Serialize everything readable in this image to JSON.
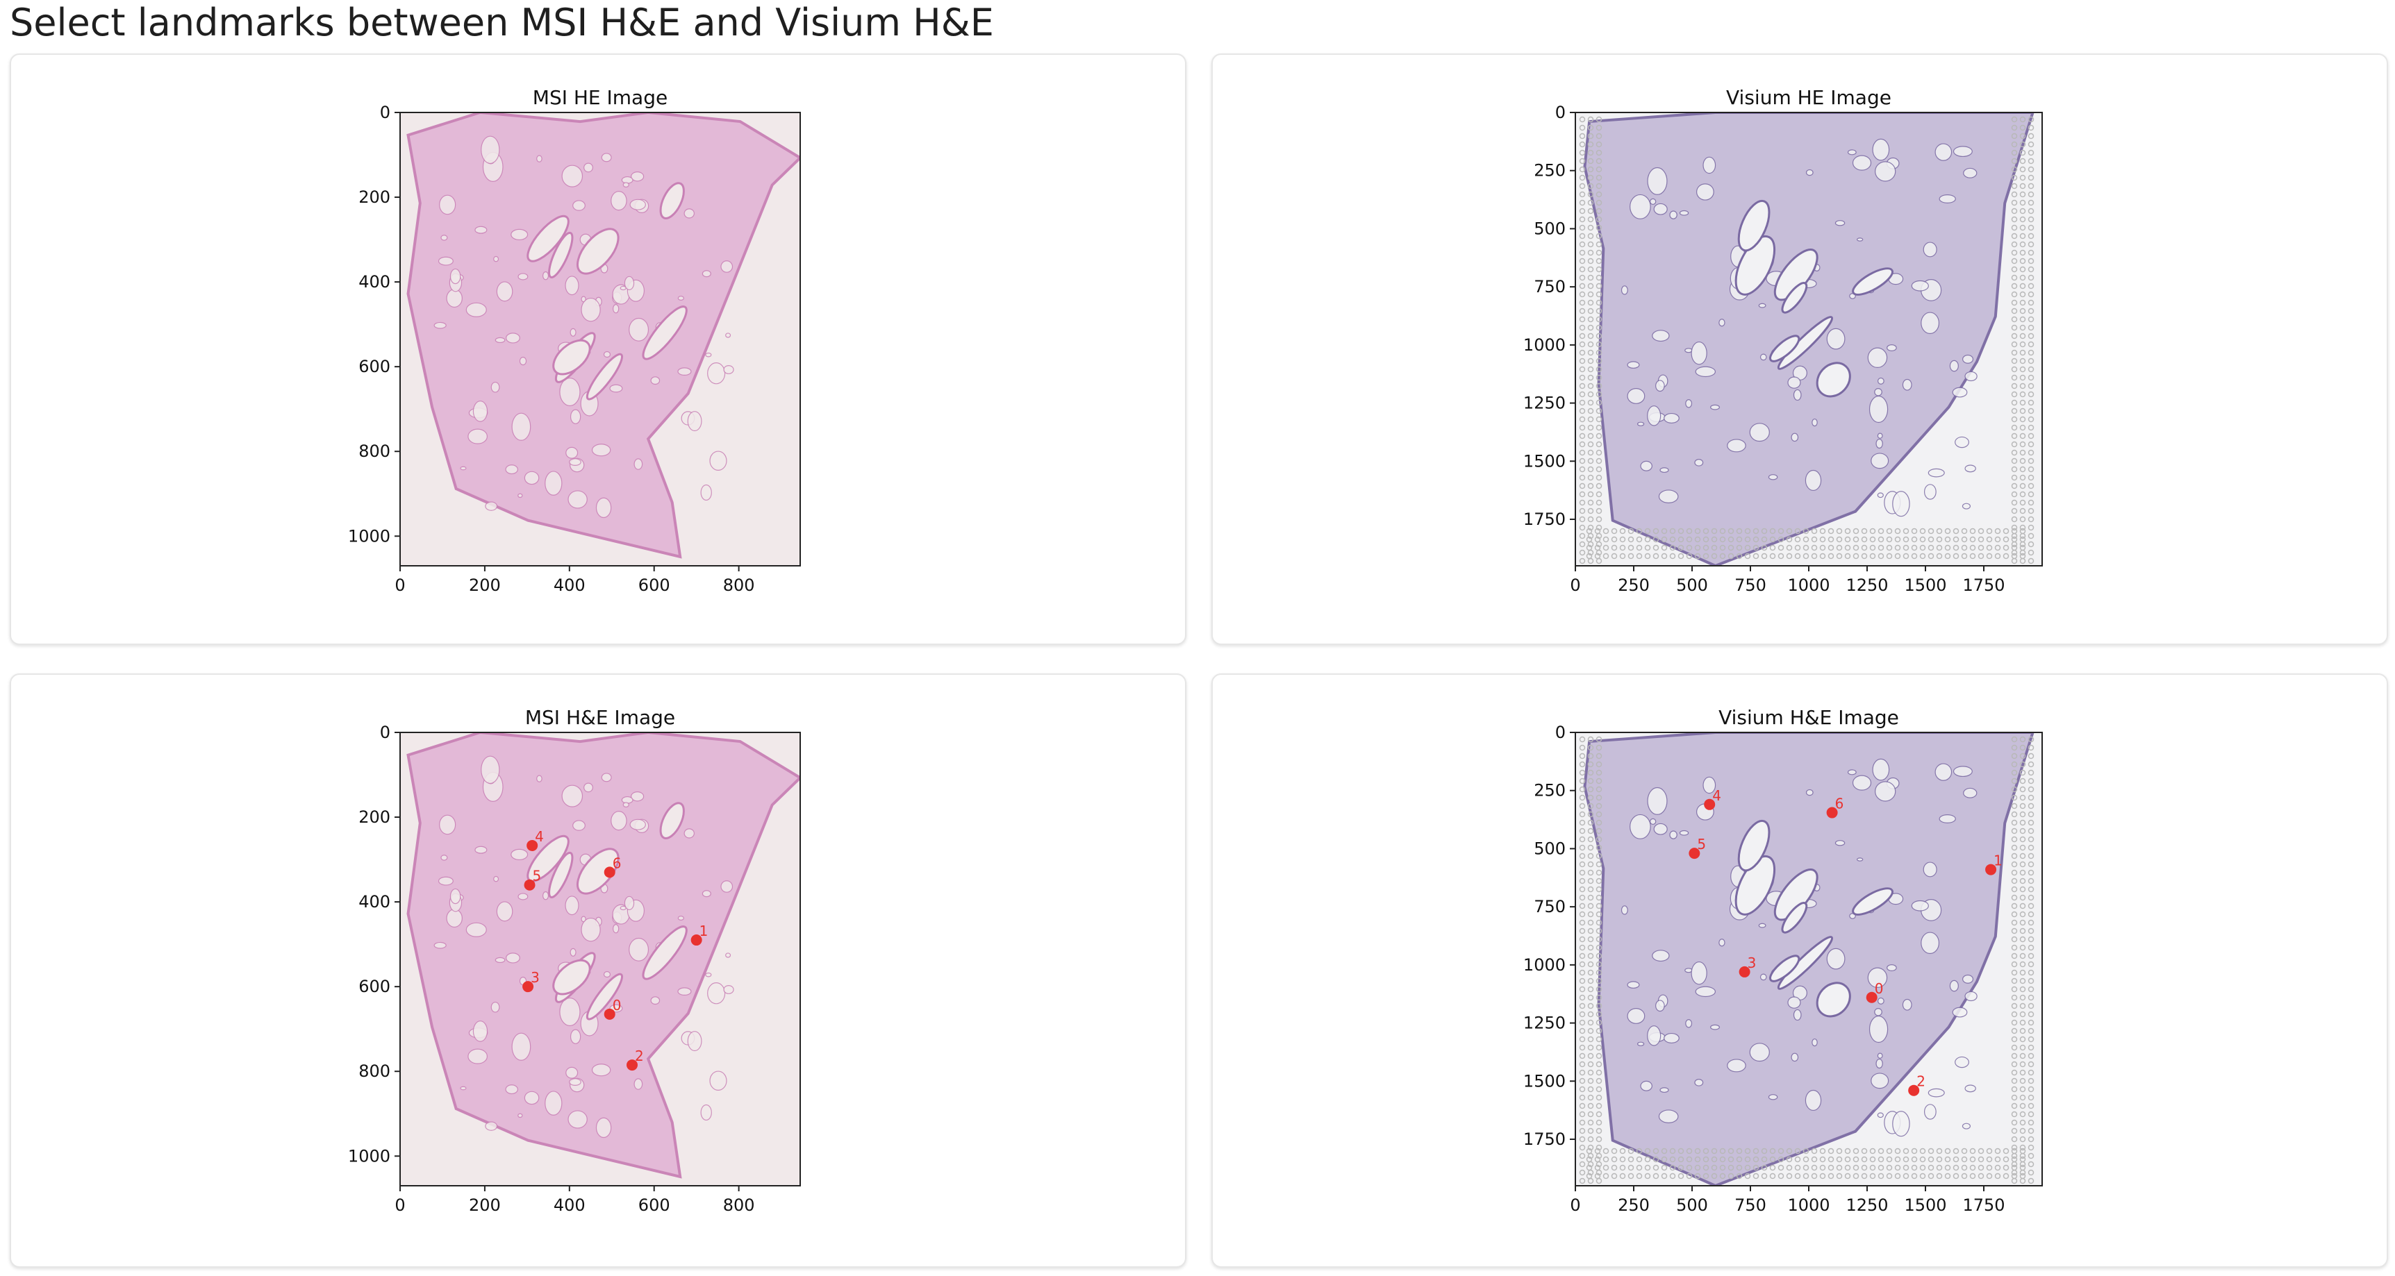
{
  "page": {
    "title": "Select landmarks between MSI H&E and Visium H&E"
  },
  "colors": {
    "msi_background": "#f1e9ea",
    "msi_tissue": "#e3b7d6",
    "msi_tissue_dark": "#c880b5",
    "visium_background": "#f2f2f4",
    "visium_tissue": "#c5bcd8",
    "visium_tissue_dark": "#7a6aa2",
    "visium_spot": "#b8b8b8",
    "landmark": "#e8322f",
    "card_border": "#e6e6e6"
  },
  "panels": [
    {
      "title": "MSI HE Image",
      "image_kind": "msi",
      "x_ticks": [
        "0",
        "200",
        "400",
        "600",
        "800"
      ],
      "y_ticks": [
        "0",
        "200",
        "400",
        "600",
        "800",
        "1000"
      ],
      "landmarks": []
    },
    {
      "title": "Visium HE Image",
      "image_kind": "visium",
      "x_ticks": [
        "0",
        "250",
        "500",
        "750",
        "1000",
        "1250",
        "1500",
        "1750"
      ],
      "y_ticks": [
        "0",
        "250",
        "500",
        "750",
        "1000",
        "1250",
        "1500",
        "1750"
      ],
      "landmarks": []
    },
    {
      "title": "MSI H&E Image",
      "image_kind": "msi",
      "x_ticks": [
        "0",
        "200",
        "400",
        "600",
        "800"
      ],
      "y_ticks": [
        "0",
        "200",
        "400",
        "600",
        "800",
        "1000"
      ],
      "landmarks": [
        {
          "label": "0",
          "x": 495,
          "y": 665
        },
        {
          "label": "1",
          "x": 700,
          "y": 490
        },
        {
          "label": "2",
          "x": 548,
          "y": 785
        },
        {
          "label": "3",
          "x": 302,
          "y": 600
        },
        {
          "label": "4",
          "x": 312,
          "y": 267
        },
        {
          "label": "5",
          "x": 306,
          "y": 360
        },
        {
          "label": "6",
          "x": 495,
          "y": 330
        }
      ]
    },
    {
      "title": "Visium H&E Image",
      "image_kind": "visium",
      "x_ticks": [
        "0",
        "250",
        "500",
        "750",
        "1000",
        "1250",
        "1500",
        "1750"
      ],
      "y_ticks": [
        "0",
        "250",
        "500",
        "750",
        "1000",
        "1250",
        "1500",
        "1750"
      ],
      "landmarks": [
        {
          "label": "0",
          "x": 1270,
          "y": 1140
        },
        {
          "label": "1",
          "x": 1780,
          "y": 590
        },
        {
          "label": "2",
          "x": 1450,
          "y": 1540
        },
        {
          "label": "3",
          "x": 725,
          "y": 1030
        },
        {
          "label": "4",
          "x": 575,
          "y": 310
        },
        {
          "label": "5",
          "x": 510,
          "y": 520
        },
        {
          "label": "6",
          "x": 1100,
          "y": 345
        }
      ]
    }
  ]
}
